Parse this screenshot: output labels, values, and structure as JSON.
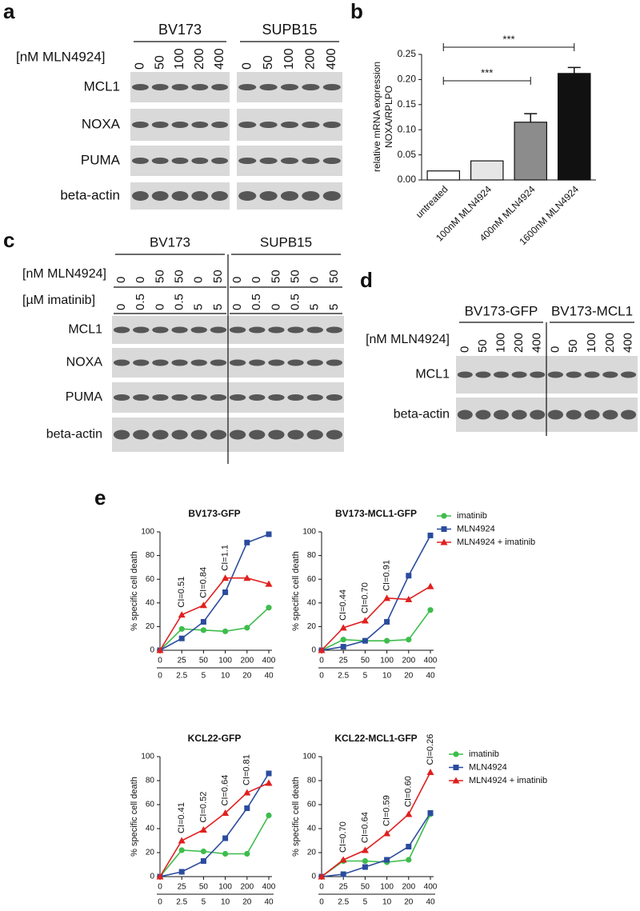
{
  "panel_labels": [
    "a",
    "b",
    "c",
    "d",
    "e"
  ],
  "blots": {
    "a": {
      "groups": [
        "BV173",
        "SUPB15"
      ],
      "treatment_rows": [
        {
          "label": "[nM MLN4924]",
          "values": [
            [
              "0",
              "50",
              "100",
              "200",
              "400"
            ],
            [
              "0",
              "50",
              "100",
              "200",
              "400"
            ]
          ]
        }
      ],
      "rows": [
        "MCL1",
        "NOXA",
        "PUMA",
        "beta-actin"
      ]
    },
    "c": {
      "groups": [
        "BV173",
        "SUPB15"
      ],
      "treatment_rows": [
        {
          "label": "[nM MLN4924]",
          "values": [
            [
              "0",
              "0",
              "50",
              "50",
              "0",
              "50"
            ],
            [
              "0",
              "0",
              "50",
              "50",
              "0",
              "50"
            ]
          ]
        },
        {
          "label": "[µM imatinib]",
          "values": [
            [
              "0",
              "0.5",
              "0",
              "0.5",
              "5",
              "5"
            ],
            [
              "0",
              "0.5",
              "0",
              "0.5",
              "5",
              "5"
            ]
          ]
        }
      ],
      "rows": [
        "MCL1",
        "NOXA",
        "PUMA",
        "beta-actin"
      ]
    },
    "d": {
      "groups": [
        "BV173-GFP",
        "BV173-MCL1"
      ],
      "treatment_rows": [
        {
          "label": "[nM MLN4924]",
          "values": [
            [
              "0",
              "50",
              "100",
              "200",
              "400"
            ],
            [
              "0",
              "50",
              "100",
              "200",
              "400"
            ]
          ]
        }
      ],
      "rows": [
        "MCL1",
        "beta-actin"
      ]
    }
  },
  "chart_data": [
    {
      "type": "bar",
      "y_label": [
        "relative mRNA expression",
        "NOXA/RPLPO"
      ],
      "categories": [
        "untreated",
        "100nM MLN4924",
        "400nM MLN4924",
        "1600nM MLN4924"
      ],
      "values": [
        0.018,
        0.038,
        0.115,
        0.212
      ],
      "errors": [
        null,
        null,
        0.017,
        0.012
      ],
      "colors": [
        "#ffffff",
        "#e6e6e6",
        "#8c8c8c",
        "#111111"
      ],
      "ylim": [
        0,
        0.25
      ],
      "yticks": [
        {
          "value": 0,
          "label": "0.00"
        },
        {
          "value": 0.05,
          "label": "0.05"
        },
        {
          "value": 0.1,
          "label": "0.10"
        },
        {
          "value": 0.15,
          "label": "0.15"
        },
        {
          "value": 0.2,
          "label": "0.20"
        },
        {
          "value": 0.25,
          "label": "0.25"
        }
      ],
      "significance_labels": [
        "***",
        "***"
      ]
    },
    {
      "type": "line",
      "title": "BV173-GFP",
      "y_label": "% specific cell death",
      "categories": [
        "0",
        "25",
        "50",
        "100",
        "200",
        "400"
      ],
      "categories2": [
        "0",
        "2.5",
        "5",
        "10",
        "20",
        "40"
      ],
      "ylim": [
        0,
        100
      ],
      "yticks": [
        0,
        20,
        40,
        60,
        80,
        100
      ],
      "legend": false,
      "ci_labels": [
        null,
        "CI=0.51",
        "CI=0.84",
        "CI=1.1",
        null,
        null
      ],
      "series": [
        {
          "name": "imatinib",
          "color": "#3dbd4c",
          "marker": "circle",
          "values": [
            0,
            18,
            17,
            16,
            19,
            36
          ]
        },
        {
          "name": "MLN4924",
          "color": "#2b4c9e",
          "marker": "square",
          "values": [
            0,
            10,
            24,
            49,
            91,
            98
          ]
        },
        {
          "name": "MLN4924 + imatinib",
          "color": "#e0201f",
          "marker": "triangle",
          "values": [
            0,
            30,
            38,
            61,
            61,
            56
          ]
        }
      ]
    },
    {
      "type": "line",
      "title": "BV173-MCL1-GFP",
      "y_label": "% specific cell death",
      "categories": [
        "0",
        "25",
        "50",
        "100",
        "200",
        "400"
      ],
      "categories2": [
        "0",
        "2.5",
        "5",
        "10",
        "20",
        "40"
      ],
      "ylim": [
        0,
        100
      ],
      "yticks": [
        0,
        20,
        40,
        60,
        80,
        100
      ],
      "legend": true,
      "ci_labels": [
        null,
        "CI=0.44",
        "CI=0.70",
        "CI=0.91",
        null,
        null
      ],
      "series": [
        {
          "name": "imatinib",
          "color": "#3dbd4c",
          "marker": "circle",
          "values": [
            0,
            9,
            8,
            8,
            9,
            34
          ]
        },
        {
          "name": "MLN4924",
          "color": "#2b4c9e",
          "marker": "square",
          "values": [
            0,
            3,
            8,
            24,
            63,
            97
          ]
        },
        {
          "name": "MLN4924 + imatinib",
          "color": "#e0201f",
          "marker": "triangle",
          "values": [
            0,
            19,
            25,
            44,
            43,
            54
          ]
        }
      ]
    },
    {
      "type": "line",
      "title": "KCL22-GFP",
      "y_label": "% specific cell death",
      "categories": [
        "0",
        "25",
        "50",
        "100",
        "200",
        "400"
      ],
      "categories2": [
        "0",
        "2.5",
        "5",
        "10",
        "20",
        "40"
      ],
      "ylim": [
        0,
        100
      ],
      "yticks": [
        0,
        20,
        40,
        60,
        80,
        100
      ],
      "legend": false,
      "ci_labels": [
        null,
        "CI=0.41",
        "CI=0.52",
        "CI=0.64",
        "CI=0.81",
        null
      ],
      "series": [
        {
          "name": "imatinib",
          "color": "#3dbd4c",
          "marker": "circle",
          "values": [
            0,
            22,
            21,
            19,
            19,
            51
          ]
        },
        {
          "name": "MLN4924",
          "color": "#2b4c9e",
          "marker": "square",
          "values": [
            0,
            4,
            13,
            32,
            57,
            86
          ]
        },
        {
          "name": "MLN4924 + imatinib",
          "color": "#e0201f",
          "marker": "triangle",
          "values": [
            0,
            30,
            39,
            53,
            70,
            78
          ]
        }
      ]
    },
    {
      "type": "line",
      "title": "KCL22-MCL1-GFP",
      "y_label": "% specific cell death",
      "categories": [
        "0",
        "25",
        "50",
        "100",
        "200",
        "400"
      ],
      "categories2": [
        "0",
        "2.5",
        "5",
        "10",
        "20",
        "40"
      ],
      "ylim": [
        0,
        100
      ],
      "yticks": [
        0,
        20,
        40,
        60,
        80,
        100
      ],
      "legend": true,
      "ci_labels": [
        null,
        "CI=0.70",
        "CI=0.64",
        "CI=0.59",
        "CI=0.60",
        "CI=0.26"
      ],
      "series": [
        {
          "name": "imatinib",
          "color": "#3dbd4c",
          "marker": "circle",
          "values": [
            0,
            13,
            13,
            12,
            14,
            52
          ]
        },
        {
          "name": "MLN4924",
          "color": "#2b4c9e",
          "marker": "square",
          "values": [
            0,
            2,
            8,
            14,
            25,
            53
          ]
        },
        {
          "name": "MLN4924 + imatinib",
          "color": "#e0201f",
          "marker": "triangle",
          "values": [
            0,
            14,
            22,
            36,
            52,
            87
          ]
        }
      ]
    }
  ]
}
